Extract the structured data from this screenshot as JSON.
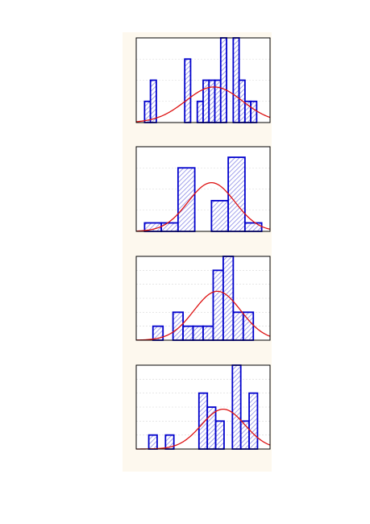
{
  "colors": {
    "background": "#ffffff",
    "panel": "#fdf8ee",
    "bar_stroke": "#0000cc",
    "bar_hatch": "#8a8ae6",
    "curve": "#dd1111",
    "grid": "#d8d8d8"
  },
  "chart_data": [
    {
      "type": "bar",
      "subtype": "histogram-with-normal-curve",
      "xlim": [
        0,
        16
      ],
      "ylim": [
        0,
        4
      ],
      "grid": true,
      "bins": [
        {
          "x0": 1.0,
          "x1": 1.7,
          "y": 1
        },
        {
          "x0": 1.7,
          "x1": 2.4,
          "y": 2
        },
        {
          "x0": 5.8,
          "x1": 6.5,
          "y": 3
        },
        {
          "x0": 7.3,
          "x1": 8.0,
          "y": 1
        },
        {
          "x0": 8.0,
          "x1": 8.7,
          "y": 2
        },
        {
          "x0": 8.7,
          "x1": 9.4,
          "y": 2
        },
        {
          "x0": 9.4,
          "x1": 10.1,
          "y": 2
        },
        {
          "x0": 10.1,
          "x1": 10.8,
          "y": 4
        },
        {
          "x0": 11.6,
          "x1": 12.3,
          "y": 4
        },
        {
          "x0": 12.3,
          "x1": 13.0,
          "y": 2
        },
        {
          "x0": 13.0,
          "x1": 13.7,
          "y": 1
        },
        {
          "x0": 13.7,
          "x1": 14.4,
          "y": 1
        }
      ],
      "normal_curve": {
        "mean": 9.3,
        "sd": 3.4,
        "peak": 1.68
      }
    },
    {
      "type": "bar",
      "subtype": "histogram-with-normal-curve",
      "xlim": [
        0,
        16
      ],
      "ylim": [
        0,
        4
      ],
      "grid": true,
      "bins": [
        {
          "x0": 1.0,
          "x1": 3.0,
          "y": 0.4
        },
        {
          "x0": 3.0,
          "x1": 5.0,
          "y": 0.4
        },
        {
          "x0": 5.0,
          "x1": 7.0,
          "y": 3.0
        },
        {
          "x0": 9.0,
          "x1": 11.0,
          "y": 1.45
        },
        {
          "x0": 11.0,
          "x1": 13.0,
          "y": 3.5
        },
        {
          "x0": 13.0,
          "x1": 15.0,
          "y": 0.4
        }
      ],
      "normal_curve": {
        "mean": 9.0,
        "sd": 2.8,
        "peak": 2.3
      }
    },
    {
      "type": "bar",
      "subtype": "histogram-with-normal-curve",
      "xlim": [
        0,
        16
      ],
      "ylim": [
        0,
        6
      ],
      "grid": true,
      "bins": [
        {
          "x0": 2.0,
          "x1": 3.2,
          "y": 1
        },
        {
          "x0": 4.4,
          "x1": 5.6,
          "y": 2
        },
        {
          "x0": 5.6,
          "x1": 6.8,
          "y": 1
        },
        {
          "x0": 6.8,
          "x1": 8.0,
          "y": 1
        },
        {
          "x0": 8.0,
          "x1": 9.2,
          "y": 1
        },
        {
          "x0": 9.2,
          "x1": 10.4,
          "y": 5
        },
        {
          "x0": 10.4,
          "x1": 11.6,
          "y": 6
        },
        {
          "x0": 11.6,
          "x1": 12.8,
          "y": 2
        },
        {
          "x0": 12.8,
          "x1": 14.0,
          "y": 2
        }
      ],
      "normal_curve": {
        "mean": 9.7,
        "sd": 2.8,
        "peak": 3.5
      }
    },
    {
      "type": "bar",
      "subtype": "histogram-with-normal-curve",
      "xlim": [
        0,
        16
      ],
      "ylim": [
        0,
        6
      ],
      "grid": true,
      "bins": [
        {
          "x0": 1.5,
          "x1": 2.5,
          "y": 1
        },
        {
          "x0": 3.5,
          "x1": 4.5,
          "y": 1
        },
        {
          "x0": 7.5,
          "x1": 8.5,
          "y": 4
        },
        {
          "x0": 8.5,
          "x1": 9.5,
          "y": 3
        },
        {
          "x0": 9.5,
          "x1": 10.5,
          "y": 2
        },
        {
          "x0": 11.5,
          "x1": 12.5,
          "y": 6
        },
        {
          "x0": 12.5,
          "x1": 13.5,
          "y": 2
        },
        {
          "x0": 13.5,
          "x1": 14.5,
          "y": 4
        }
      ],
      "normal_curve": {
        "mean": 10.4,
        "sd": 2.6,
        "peak": 2.85
      }
    }
  ]
}
